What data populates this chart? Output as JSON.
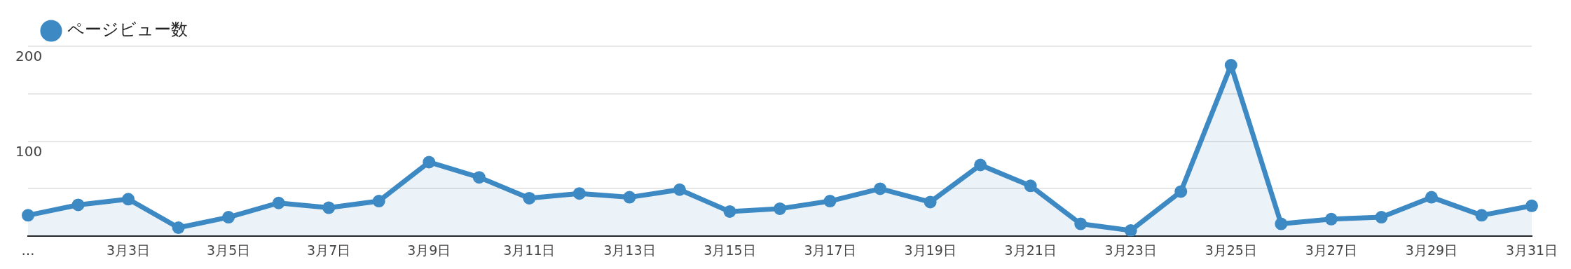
{
  "chart_data": {
    "type": "area",
    "categories": [
      "…",
      null,
      "3月3日",
      null,
      "3月5日",
      null,
      "3月7日",
      null,
      "3月9日",
      null,
      "3月11日",
      null,
      "3月13日",
      null,
      "3月15日",
      null,
      "3月17日",
      null,
      "3月19日",
      null,
      "3月21日",
      null,
      "3月23日",
      null,
      "3月25日",
      null,
      "3月27日",
      null,
      "3月29日",
      null,
      "3月31日"
    ],
    "series": [
      {
        "name": "ページビュー数",
        "color": "#3d89c3",
        "values": [
          22,
          33,
          39,
          9,
          20,
          35,
          30,
          37,
          78,
          62,
          40,
          45,
          41,
          49,
          26,
          29,
          37,
          50,
          36,
          75,
          53,
          13,
          6,
          47,
          180,
          13,
          18,
          20,
          41,
          22,
          32
        ]
      }
    ],
    "ylim": [
      0,
      200
    ],
    "yticks": [
      {
        "value": 0,
        "label": null
      },
      {
        "value": 50,
        "label": null
      },
      100,
      {
        "value": 150,
        "label": null
      },
      200
    ],
    "grid": "y",
    "legend": "top left",
    "marker": "circle",
    "line_style": "solid"
  }
}
